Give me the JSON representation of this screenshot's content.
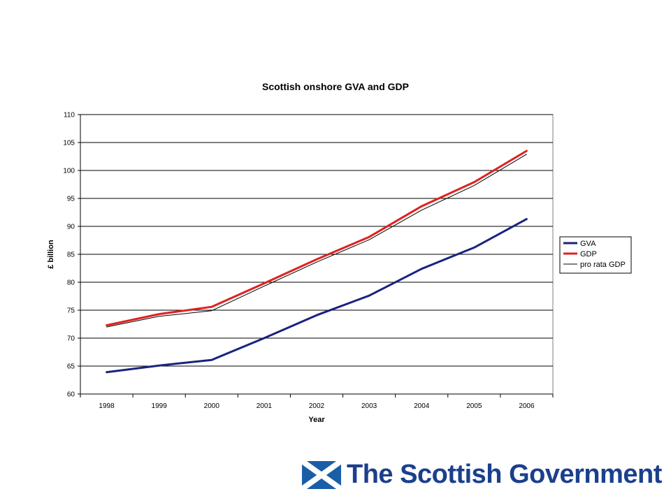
{
  "brand": {
    "name": "The Scottish Government",
    "flag_colors": {
      "field": "#1b5ea8",
      "cross": "#ffffff"
    },
    "text_color": "#1b3f8c"
  },
  "chart_data": {
    "type": "line",
    "title": "Scottish onshore GVA and GDP",
    "xlabel": "Year",
    "ylabel": "£ billion",
    "categories": [
      "1998",
      "1999",
      "2000",
      "2001",
      "2002",
      "2003",
      "2004",
      "2005",
      "2006"
    ],
    "ylim": [
      60,
      110
    ],
    "yticks": [
      60,
      65,
      70,
      75,
      80,
      85,
      90,
      95,
      100,
      105,
      110
    ],
    "grid": true,
    "legend_position": "right",
    "series": [
      {
        "name": "GVA",
        "color": "#1a237e",
        "stroke": "thick",
        "values": [
          63.9,
          65.1,
          66.1,
          70.0,
          74.1,
          77.6,
          82.4,
          86.2,
          91.3
        ]
      },
      {
        "name": "GDP",
        "color": "#e02020",
        "stroke": "thick",
        "values": [
          72.3,
          74.3,
          75.6,
          79.8,
          84.1,
          88.1,
          93.6,
          97.9,
          103.5
        ]
      },
      {
        "name": "pro rata GDP",
        "color": "#000000",
        "stroke": "thin",
        "values": [
          72.0,
          73.9,
          74.9,
          79.3,
          83.6,
          87.6,
          92.9,
          97.3,
          102.9
        ]
      }
    ]
  }
}
